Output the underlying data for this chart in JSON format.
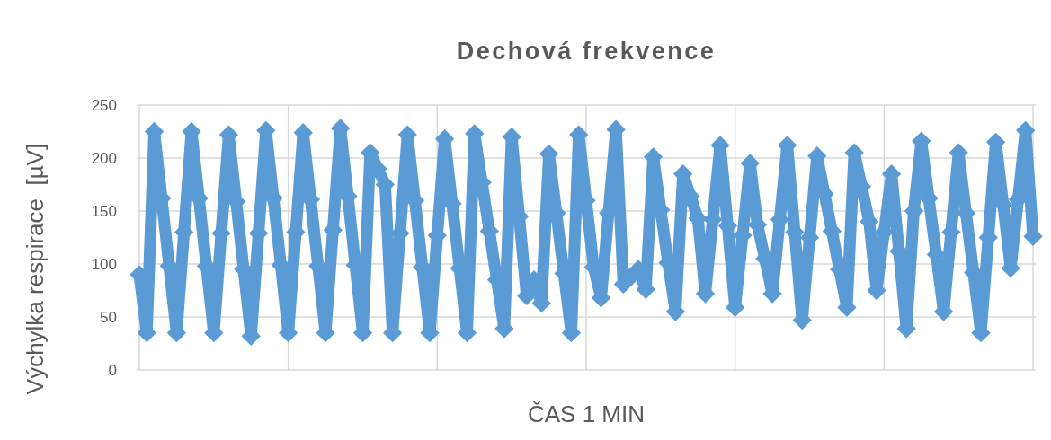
{
  "chart_data": {
    "type": "line",
    "title": "Dechová frekvence",
    "xlabel": "ČAS 1 MIN",
    "ylabel": "Výchylka respirace  [µV]",
    "categories": [
      null,
      null,
      null,
      null,
      null,
      null,
      null,
      null,
      null,
      null,
      null,
      null,
      null,
      null,
      null,
      null,
      null,
      null,
      null,
      null,
      null,
      null,
      null,
      null,
      null,
      null,
      null,
      null,
      null,
      null,
      null,
      null,
      null,
      null,
      null,
      null,
      null,
      null,
      null,
      null,
      null,
      null,
      null,
      null,
      null,
      null,
      null,
      null,
      null,
      null,
      null,
      null,
      null,
      null,
      null,
      null,
      null,
      null,
      null,
      null,
      null,
      null,
      null,
      null,
      null,
      null,
      null,
      null,
      null,
      null,
      null,
      null,
      null,
      null,
      null,
      null,
      null,
      null,
      null,
      null,
      null,
      null,
      null,
      null,
      null,
      null,
      null,
      null,
      null,
      null,
      null,
      null,
      null,
      null,
      null,
      null,
      null,
      null,
      null,
      null,
      null,
      null,
      null,
      null,
      null,
      null,
      null,
      null,
      null,
      null,
      null,
      null,
      null,
      null,
      null,
      null,
      null,
      null,
      null,
      null,
      null
    ],
    "series": [
      {
        "color": "#5b9bd5",
        "values": [
          90,
          35,
          225,
          162,
          98,
          35,
          130,
          225,
          162,
          98,
          35,
          129,
          222,
          159,
          95,
          32,
          129,
          226,
          162,
          99,
          35,
          130,
          224,
          161,
          98,
          35,
          132,
          228,
          164,
          99,
          35,
          205,
          190,
          175,
          35,
          129,
          222,
          160,
          97,
          35,
          127,
          218,
          157,
          96,
          35,
          223,
          177,
          131,
          85,
          39,
          220,
          145,
          70,
          85,
          63,
          204,
          148,
          91,
          35,
          222,
          160,
          97,
          68,
          148,
          227,
          81,
          88,
          95,
          76,
          201,
          151,
          101,
          55,
          185,
          164,
          143,
          72,
          142,
          212,
          136,
          59,
          127,
          195,
          137,
          105,
          72,
          142,
          212,
          130,
          47,
          125,
          202,
          166,
          131,
          95,
          59,
          205,
          173,
          140,
          75,
          130,
          185,
          112,
          39,
          150,
          216,
          162,
          109,
          55,
          130,
          205,
          148,
          92,
          35,
          125,
          215,
          156,
          96,
          161,
          226,
          126
        ]
      }
    ],
    "ylim": [
      0,
      250
    ],
    "yticks": [
      0,
      50,
      100,
      150,
      200,
      250
    ],
    "grid": true,
    "tick_labels": "y",
    "marker": "diamond",
    "line_style": "solid"
  }
}
